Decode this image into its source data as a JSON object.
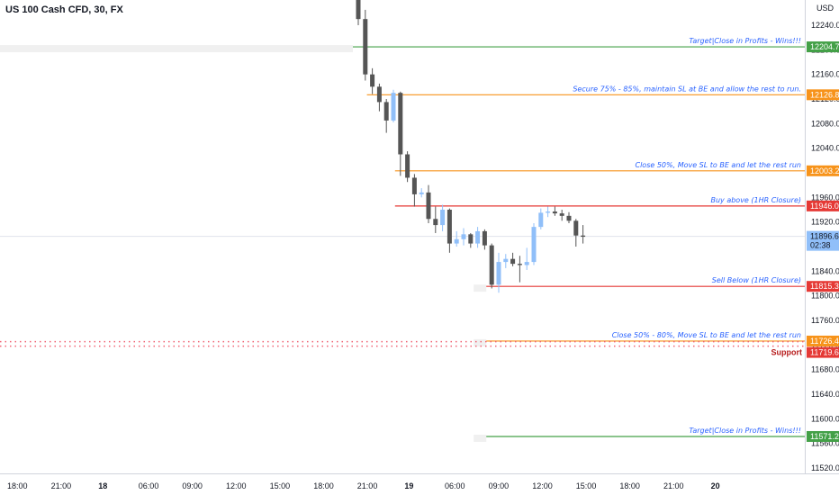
{
  "header": {
    "title": "US 100 Cash CFD, 30, FX"
  },
  "colors": {
    "up": "#90bff9",
    "down": "#555555",
    "green": "#43a047",
    "orange": "#f7931a",
    "red": "#e53935",
    "annotation_text": "#2962ff",
    "grid": "#eeeeee",
    "support_dots": "#f06273"
  },
  "chart_data": {
    "type": "candlestick",
    "currency": "USD",
    "ylim": [
      11500,
      12260
    ],
    "y_ticks": [
      "12240.00",
      "12200.00",
      "12160.00",
      "12120.00",
      "12080.00",
      "12040.00",
      "12000.00",
      "11960.00",
      "11920.00",
      "11880.00",
      "11840.00",
      "11800.00",
      "11760.00",
      "11720.00",
      "11680.00",
      "11640.00",
      "11600.00",
      "11560.00",
      "11520.00"
    ],
    "x_ticks": [
      {
        "label": "18:00",
        "bold": false
      },
      {
        "label": "21:00",
        "bold": false
      },
      {
        "label": "18",
        "bold": true
      },
      {
        "label": "06:00",
        "bold": false
      },
      {
        "label": "09:00",
        "bold": false
      },
      {
        "label": "12:00",
        "bold": false
      },
      {
        "label": "15:00",
        "bold": false
      },
      {
        "label": "18:00",
        "bold": false
      },
      {
        "label": "21:00",
        "bold": false
      },
      {
        "label": "19",
        "bold": true
      },
      {
        "label": "06:00",
        "bold": false
      },
      {
        "label": "09:00",
        "bold": false
      },
      {
        "label": "12:00",
        "bold": false
      },
      {
        "label": "15:00",
        "bold": false
      },
      {
        "label": "18:00",
        "bold": false
      },
      {
        "label": "21:00",
        "bold": false
      },
      {
        "label": "20",
        "bold": true
      }
    ],
    "candles": [
      {
        "o": 12300,
        "h": 12300,
        "l": 12240,
        "c": 12250
      },
      {
        "o": 12250,
        "h": 12265,
        "l": 12150,
        "c": 12160
      },
      {
        "o": 12160,
        "h": 12170,
        "l": 12128,
        "c": 12140
      },
      {
        "o": 12140,
        "h": 12145,
        "l": 12100,
        "c": 12115
      },
      {
        "o": 12115,
        "h": 12120,
        "l": 12065,
        "c": 12085
      },
      {
        "o": 12085,
        "h": 12135,
        "l": 12082,
        "c": 12130
      },
      {
        "o": 12130,
        "h": 12132,
        "l": 11995,
        "c": 12030
      },
      {
        "o": 12030,
        "h": 12035,
        "l": 11985,
        "c": 11992
      },
      {
        "o": 11992,
        "h": 11998,
        "l": 11945,
        "c": 11965
      },
      {
        "o": 11965,
        "h": 11975,
        "l": 11960,
        "c": 11968
      },
      {
        "o": 11968,
        "h": 11980,
        "l": 11918,
        "c": 11925
      },
      {
        "o": 11925,
        "h": 11945,
        "l": 11902,
        "c": 11915
      },
      {
        "o": 11915,
        "h": 11948,
        "l": 11905,
        "c": 11940
      },
      {
        "o": 11940,
        "h": 11942,
        "l": 11870,
        "c": 11885
      },
      {
        "o": 11885,
        "h": 11905,
        "l": 11880,
        "c": 11892
      },
      {
        "o": 11892,
        "h": 11910,
        "l": 11882,
        "c": 11900
      },
      {
        "o": 11900,
        "h": 11902,
        "l": 11878,
        "c": 11885
      },
      {
        "o": 11885,
        "h": 11912,
        "l": 11878,
        "c": 11905
      },
      {
        "o": 11905,
        "h": 11908,
        "l": 11875,
        "c": 11882
      },
      {
        "o": 11882,
        "h": 11885,
        "l": 11812,
        "c": 11818
      },
      {
        "o": 11818,
        "h": 11870,
        "l": 11805,
        "c": 11855
      },
      {
        "o": 11855,
        "h": 11868,
        "l": 11845,
        "c": 11860
      },
      {
        "o": 11860,
        "h": 11870,
        "l": 11848,
        "c": 11852
      },
      {
        "o": 11852,
        "h": 11865,
        "l": 11822,
        "c": 11850
      },
      {
        "o": 11850,
        "h": 11878,
        "l": 11842,
        "c": 11855
      },
      {
        "o": 11855,
        "h": 11918,
        "l": 11850,
        "c": 11912
      },
      {
        "o": 11912,
        "h": 11942,
        "l": 11908,
        "c": 11935
      },
      {
        "o": 11935,
        "h": 11945,
        "l": 11928,
        "c": 11937
      },
      {
        "o": 11937,
        "h": 11945,
        "l": 11930,
        "c": 11934
      },
      {
        "o": 11934,
        "h": 11940,
        "l": 11922,
        "c": 11930
      },
      {
        "o": 11930,
        "h": 11936,
        "l": 11918,
        "c": 11922
      },
      {
        "o": 11922,
        "h": 11925,
        "l": 11880,
        "c": 11898
      },
      {
        "o": 11898,
        "h": 11915,
        "l": 11885,
        "c": 11896
      }
    ],
    "levels": [
      {
        "price": 12204.77,
        "label": "12204.77",
        "color": "green",
        "annotation": "Target|Close in Profits - Wins!!!",
        "from_candle": 0
      },
      {
        "price": 12126.85,
        "label": "12126.85",
        "color": "orange",
        "annotation": "Secure 75% - 85%, maintain SL at BE and allow the rest to run.",
        "from_candle": 2
      },
      {
        "price": 12003.22,
        "label": "12003.22",
        "color": "orange",
        "annotation": "Close 50%, Move SL to BE and let the rest run",
        "from_candle": 6
      },
      {
        "price": 11946.08,
        "label": "11946.08",
        "color": "red",
        "annotation": "Buy above (1HR Closure)",
        "from_candle": 6
      },
      {
        "price": 11815.3,
        "label": "11815.30",
        "color": "red",
        "annotation": "Sell Below (1HR Closure)",
        "from_candle": 19
      },
      {
        "price": 11726.41,
        "label": "11726.41",
        "color": "orange",
        "annotation": "Close 50% - 80%, Move SL to BE and let the rest run",
        "from_candle": 19
      },
      {
        "price": 11571.25,
        "label": "11571.25",
        "color": "green",
        "annotation": "Target|Close in Profits - Wins!!!",
        "from_candle": 19
      }
    ],
    "support": {
      "price": 11719.63,
      "label": "11719.63",
      "text": "Support"
    },
    "current": {
      "price": 11896.61,
      "label": "11896.61",
      "countdown": "02:38"
    }
  }
}
